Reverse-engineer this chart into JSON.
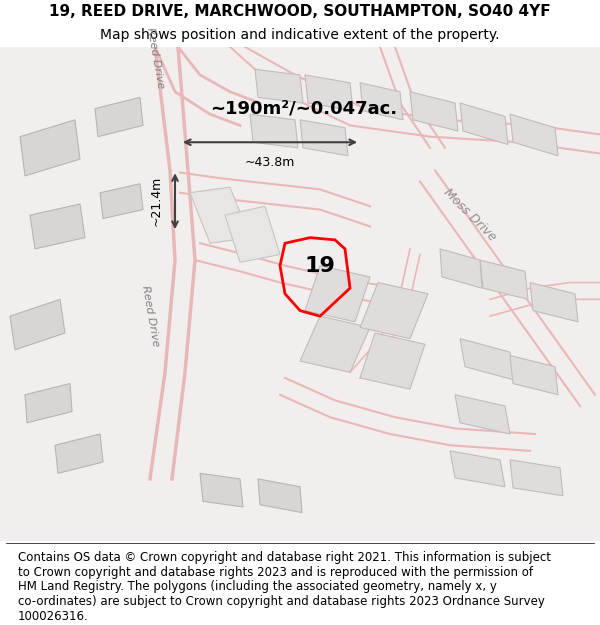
{
  "title_line1": "19, REED DRIVE, MARCHWOOD, SOUTHAMPTON, SO40 4YF",
  "title_line2": "Map shows position and indicative extent of the property.",
  "footer_lines": [
    "Contains OS data © Crown copyright and database right 2021. This information is subject",
    "to Crown copyright and database rights 2023 and is reproduced with the permission of",
    "HM Land Registry. The polygons (including the associated geometry, namely x, y",
    "co-ordinates) are subject to Crown copyright and database rights 2023 Ordnance Survey",
    "100026316."
  ],
  "area_label": "~190m²/~0.047ac.",
  "number_label": "19",
  "dim_vertical": "~21.4m",
  "dim_horizontal": "~43.8m",
  "road_label_1": "Reed Drive",
  "road_label_2": "Moss Drive",
  "map_bg": "#f0eeee",
  "road_line_color": "#e8b8b8",
  "property_color": "#ff0000",
  "dim_color": "#404040",
  "title_fontsize": 11,
  "subtitle_fontsize": 10,
  "footer_fontsize": 8.5
}
